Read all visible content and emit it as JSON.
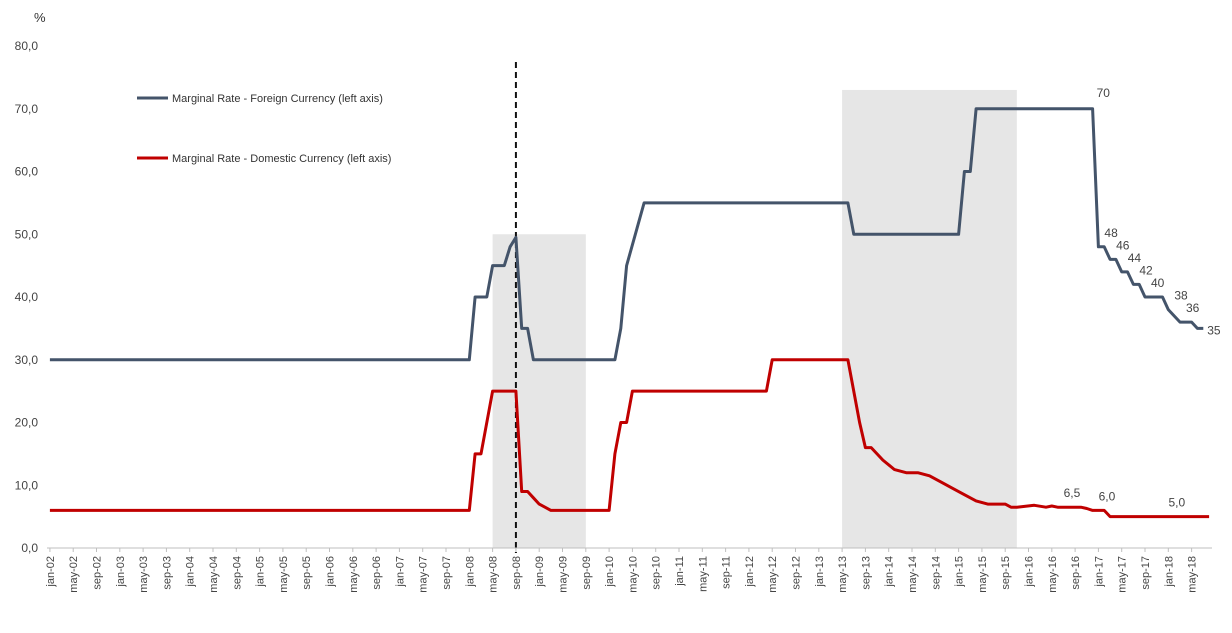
{
  "chart_data": {
    "type": "line",
    "unit_label": "%",
    "ylim": [
      0,
      80
    ],
    "yticks": [
      "0,0",
      "10,0",
      "20,0",
      "30,0",
      "40,0",
      "50,0",
      "60,0",
      "70,0",
      "80,0"
    ],
    "x_tick_labels": [
      "jan-02",
      "may-02",
      "sep-02",
      "jan-03",
      "may-03",
      "sep-03",
      "jan-04",
      "may-04",
      "sep-04",
      "jan-05",
      "may-05",
      "sep-05",
      "jan-06",
      "may-06",
      "sep-06",
      "jan-07",
      "may-07",
      "sep-07",
      "jan-08",
      "may-08",
      "sep-08",
      "jan-09",
      "may-09",
      "sep-09",
      "jan-10",
      "may-10",
      "sep-10",
      "jan-11",
      "may-11",
      "sep-11",
      "jan-12",
      "may-12",
      "sep-12",
      "jan-13",
      "may-13",
      "sep-13",
      "jan-14",
      "may-14",
      "sep-14",
      "jan-15",
      "may-15",
      "sep-15",
      "jan-16",
      "may-16",
      "sep-16",
      "jan-17",
      "may-17",
      "sep-17",
      "jan-18",
      "may-18"
    ],
    "shaded_periods": [
      {
        "from": "may-08",
        "to": "sep-09",
        "ymax": 50
      },
      {
        "from": "may-13",
        "to": "nov-15",
        "ymax": 73
      }
    ],
    "vertical_marker": "sep-08",
    "series": [
      {
        "name": "Marginal Rate - Foreign Currency (left axis)",
        "color": "#44546a",
        "points": [
          [
            "jan-02",
            30
          ],
          [
            "jan-08",
            30
          ],
          [
            "feb-08",
            40
          ],
          [
            "apr-08",
            40
          ],
          [
            "may-08",
            45
          ],
          [
            "jul-08",
            45
          ],
          [
            "aug-08",
            48
          ],
          [
            "sep-08",
            49.5
          ],
          [
            "oct-08",
            35
          ],
          [
            "nov-08",
            35
          ],
          [
            "dec-08",
            30
          ],
          [
            "feb-10",
            30
          ],
          [
            "mar-10",
            35
          ],
          [
            "apr-10",
            45
          ],
          [
            "jul-10",
            55
          ],
          [
            "jun-13",
            55
          ],
          [
            "jul-13",
            50
          ],
          [
            "jan-15",
            50
          ],
          [
            "feb-15",
            60
          ],
          [
            "mar-15",
            60
          ],
          [
            "apr-15",
            70
          ],
          [
            "dec-16",
            70
          ],
          [
            "jan-17",
            48
          ],
          [
            "feb-17",
            48
          ],
          [
            "mar-17",
            46
          ],
          [
            "apr-17",
            46
          ],
          [
            "may-17",
            44
          ],
          [
            "jun-17",
            44
          ],
          [
            "jul-17",
            42
          ],
          [
            "aug-17",
            42
          ],
          [
            "sep-17",
            40
          ],
          [
            "dec-17",
            40
          ],
          [
            "jan-18",
            38
          ],
          [
            "mar-18",
            36
          ],
          [
            "may-18",
            36
          ],
          [
            "jun-18",
            35
          ],
          [
            "jul-18",
            35
          ]
        ]
      },
      {
        "name": "Marginal Rate - Domestic Currency (left axis)",
        "color": "#c00000",
        "points": [
          [
            "jan-02",
            6
          ],
          [
            "jan-08",
            6
          ],
          [
            "feb-08",
            15
          ],
          [
            "mar-08",
            15
          ],
          [
            "may-08",
            25
          ],
          [
            "sep-08",
            25
          ],
          [
            "oct-08",
            9
          ],
          [
            "nov-08",
            9
          ],
          [
            "dec-08",
            8
          ],
          [
            "jan-09",
            7
          ],
          [
            "feb-09",
            6.5
          ],
          [
            "mar-09",
            6
          ],
          [
            "jan-10",
            6
          ],
          [
            "feb-10",
            15
          ],
          [
            "mar-10",
            20
          ],
          [
            "apr-10",
            20
          ],
          [
            "may-10",
            25
          ],
          [
            "apr-12",
            25
          ],
          [
            "may-12",
            30
          ],
          [
            "jun-13",
            30
          ],
          [
            "aug-13",
            20
          ],
          [
            "sep-13",
            16
          ],
          [
            "oct-13",
            16
          ],
          [
            "dec-13",
            14
          ],
          [
            "feb-14",
            12.5
          ],
          [
            "apr-14",
            12
          ],
          [
            "jun-14",
            12
          ],
          [
            "aug-14",
            11.5
          ],
          [
            "oct-14",
            10.5
          ],
          [
            "dec-14",
            9.5
          ],
          [
            "feb-15",
            8.5
          ],
          [
            "apr-15",
            7.5
          ],
          [
            "jun-15",
            7
          ],
          [
            "aug-15",
            7
          ],
          [
            "sep-15",
            7
          ],
          [
            "oct-15",
            6.5
          ],
          [
            "nov-15",
            6.5
          ],
          [
            "feb-16",
            6.8
          ],
          [
            "apr-16",
            6.5
          ],
          [
            "may-16",
            6.7
          ],
          [
            "jun-16",
            6.5
          ],
          [
            "oct-16",
            6.5
          ],
          [
            "nov-16",
            6.3
          ],
          [
            "dec-16",
            6
          ],
          [
            "feb-17",
            6
          ],
          [
            "mar-17",
            5
          ],
          [
            "aug-18",
            5
          ]
        ]
      }
    ],
    "annotations": [
      {
        "text": "70",
        "at": "dec-16",
        "y": 70
      },
      {
        "text": "48",
        "at": "jan-17",
        "y": 48
      },
      {
        "text": "46",
        "at": "mar-17",
        "y": 46
      },
      {
        "text": "44",
        "at": "may-17",
        "y": 44
      },
      {
        "text": "42",
        "at": "jul-17",
        "y": 42
      },
      {
        "text": "40",
        "at": "sep-17",
        "y": 40
      },
      {
        "text": "38",
        "at": "jan-18",
        "y": 38
      },
      {
        "text": "36",
        "at": "mar-18",
        "y": 36
      },
      {
        "text": "35",
        "at": "jul-18",
        "y": 35
      },
      {
        "text": "6,5",
        "at": "jun-16",
        "y": 6.5
      },
      {
        "text": "6,0",
        "at": "dec-16",
        "y": 6
      },
      {
        "text": "5,0",
        "at": "dec-17",
        "y": 5
      }
    ]
  }
}
